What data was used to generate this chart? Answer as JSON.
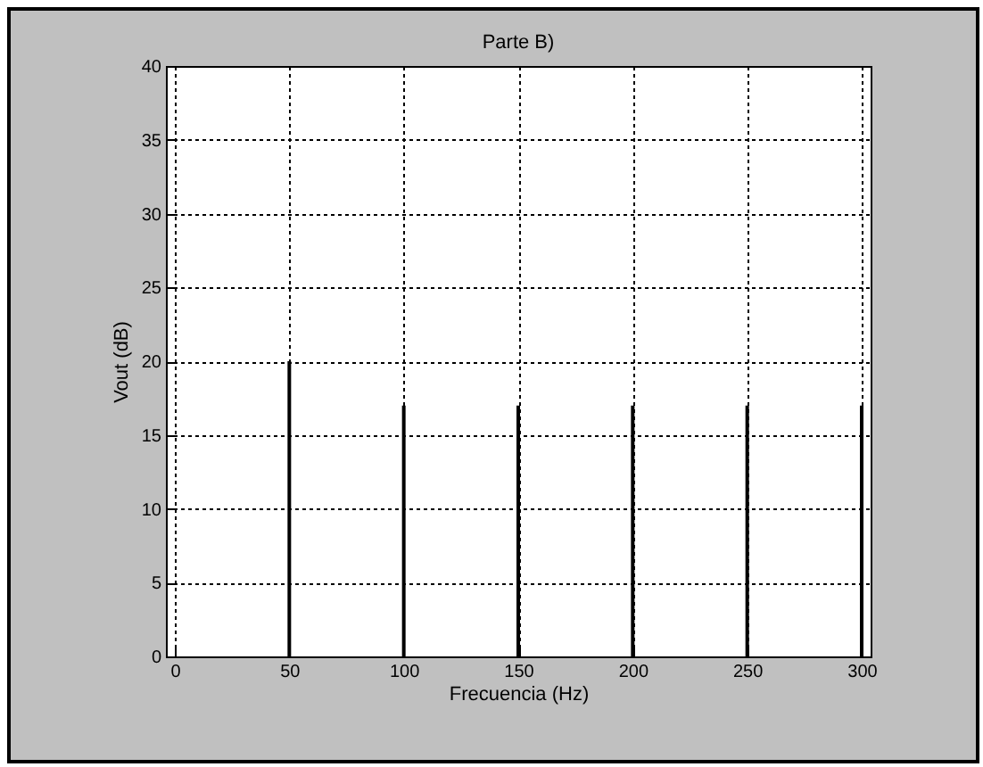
{
  "chart_data": {
    "type": "bar",
    "title": "Parte B)",
    "xlabel": "Frecuencia (Hz)",
    "ylabel": "Vout (dB)",
    "x": [
      50,
      100,
      150,
      200,
      250,
      300
    ],
    "series": [
      {
        "color": "#000000",
        "values": [
          20,
          17,
          17,
          17,
          17,
          17
        ]
      }
    ],
    "xlim": [
      0,
      300
    ],
    "xticks": [
      0,
      50,
      100,
      150,
      200,
      250,
      300
    ],
    "ylim": [
      0,
      40
    ],
    "yticks": [
      0,
      5,
      10,
      15,
      20,
      25,
      30,
      35,
      40
    ],
    "grid": true,
    "legend": false
  }
}
